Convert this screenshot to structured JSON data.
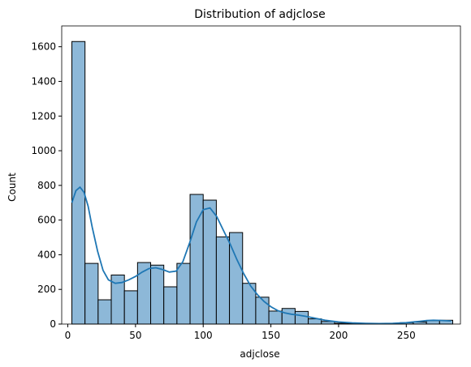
{
  "chart_data": {
    "type": "bar",
    "subtype": "histogram-with-kde",
    "title": "Distribution of adjclose",
    "xlabel": "adjclose",
    "ylabel": "Count",
    "xlim": [
      -4.5,
      290
    ],
    "ylim": [
      0,
      1720
    ],
    "x_ticks": [
      0,
      50,
      100,
      150,
      200,
      250
    ],
    "y_ticks": [
      0,
      200,
      400,
      600,
      800,
      1000,
      1200,
      1400,
      1600
    ],
    "grid": false,
    "legend": "none",
    "bin_edges": [
      3,
      12.7,
      22.4,
      32.1,
      41.8,
      51.5,
      61.2,
      70.9,
      80.6,
      90.3,
      100,
      109.7,
      119.4,
      129.1,
      138.8,
      148.5,
      158.2,
      167.9,
      177.6,
      187.3,
      197,
      206.7,
      216.4,
      226.1,
      235.8,
      245.5,
      255.2,
      264.9,
      274.6,
      284.3
    ],
    "values": [
      1630,
      350,
      140,
      283,
      192,
      355,
      340,
      215,
      350,
      748,
      715,
      503,
      528,
      235,
      155,
      75,
      90,
      73,
      30,
      15,
      5,
      3,
      2,
      2,
      3,
      8,
      12,
      20,
      22
    ],
    "kde": {
      "x": [
        3,
        6,
        9,
        12,
        15,
        18,
        22,
        26,
        30,
        35,
        40,
        45,
        50,
        55,
        60,
        65,
        70,
        75,
        80,
        85,
        90,
        95,
        100,
        105,
        110,
        115,
        120,
        125,
        130,
        135,
        140,
        145,
        150,
        155,
        160,
        165,
        170,
        175,
        180,
        190,
        200,
        210,
        220,
        230,
        240,
        250,
        255,
        260,
        265,
        270,
        275,
        283
      ],
      "y": [
        700,
        770,
        790,
        760,
        680,
        560,
        420,
        310,
        255,
        235,
        240,
        255,
        275,
        300,
        320,
        325,
        315,
        300,
        305,
        360,
        470,
        590,
        660,
        670,
        620,
        540,
        460,
        370,
        290,
        220,
        170,
        130,
        100,
        78,
        65,
        57,
        52,
        46,
        38,
        22,
        12,
        7,
        4,
        3,
        4,
        8,
        12,
        16,
        20,
        22,
        21,
        18
      ]
    },
    "bar_color": "#8db8d8",
    "bar_edge": "#000000",
    "kde_color": "#1f77b4"
  }
}
